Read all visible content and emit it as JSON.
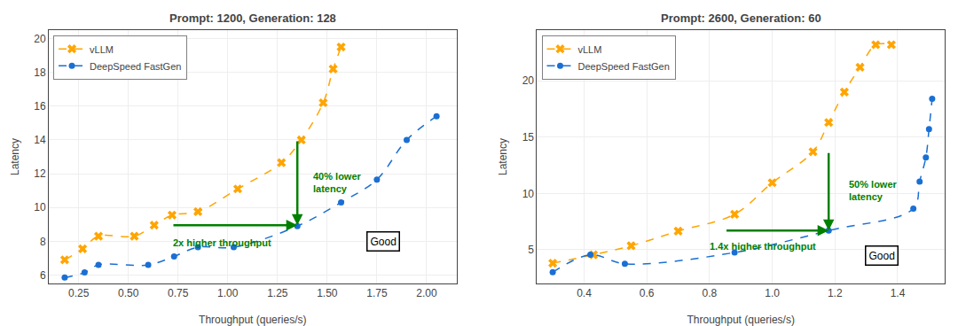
{
  "chart_data": [
    {
      "type": "scatter",
      "title": "Prompt: 1200, Generation: 128",
      "x_label": "Throughput (queries/s)",
      "y_label": "Latency",
      "series": [
        {
          "name": "vLLM",
          "color": "#FFA500",
          "marker": "x",
          "line_style": "dashed",
          "x": [
            0.18,
            0.27,
            0.35,
            0.53,
            0.63,
            0.72,
            0.85,
            1.05,
            1.27,
            1.37,
            1.48,
            1.53,
            1.57
          ],
          "values": [
            6.9,
            7.55,
            8.3,
            8.3,
            8.95,
            9.55,
            9.75,
            11.1,
            12.65,
            14.0,
            16.2,
            18.2,
            19.5
          ]
        },
        {
          "name": "DeepSpeed FastGen",
          "color": "#1a6fd4",
          "marker": "circle",
          "line_style": "dashed",
          "x": [
            0.18,
            0.28,
            0.35,
            0.6,
            0.73,
            0.85,
            1.03,
            1.35,
            1.57,
            1.75,
            1.9,
            2.05
          ],
          "values": [
            5.85,
            6.15,
            6.6,
            6.6,
            7.1,
            7.65,
            7.65,
            8.9,
            10.3,
            11.65,
            14.0,
            15.4
          ]
        }
      ],
      "xlim": [
        0.1,
        2.15
      ],
      "ylim": [
        5.5,
        20.5
      ],
      "xticks": [
        0.25,
        {
          "value": 0.5,
          "label": "0.50"
        },
        0.75,
        {
          "value": 1.0,
          "label": "1.00"
        },
        1.25,
        {
          "value": 1.5,
          "label": "1.50"
        },
        1.75,
        {
          "value": 2.0,
          "label": "2.00"
        }
      ],
      "yticks": [
        6,
        8,
        10,
        12,
        14,
        16,
        18,
        20
      ],
      "grid": true,
      "legend": "upper left",
      "throughput_arrow": {
        "from": [
          0.72,
          8.95
        ],
        "to": [
          1.35,
          8.95
        ],
        "color": "#008000"
      },
      "latency_arrow": {
        "from": [
          1.35,
          14.0
        ],
        "to": [
          1.35,
          8.95
        ],
        "color": "#008000"
      },
      "throughput_label": {
        "text": "2x higher throughput",
        "x": 0.97,
        "y": 8.35,
        "color": "#008000"
      },
      "latency_label": {
        "text": "40% lower\nlatency",
        "x": 1.42,
        "y": 11.5,
        "color": "#008000"
      },
      "good_label": {
        "text": "Good",
        "x": 1.78,
        "y": 8.0
      }
    },
    {
      "type": "scatter",
      "title": "Prompt: 2600, Generation: 60",
      "x_label": "Throughput (queries/s)",
      "y_label": "Latency",
      "series": [
        {
          "name": "vLLM",
          "color": "#FFA500",
          "marker": "x",
          "line_style": "dashed",
          "x": [
            0.3,
            0.43,
            0.55,
            0.7,
            0.88,
            1.0,
            1.13,
            1.18,
            1.23,
            1.28,
            1.33,
            1.38
          ],
          "values": [
            3.8,
            4.55,
            5.35,
            6.65,
            8.15,
            10.95,
            13.7,
            16.3,
            19.0,
            21.2,
            23.2,
            23.2
          ]
        },
        {
          "name": "DeepSpeed FastGen",
          "color": "#1a6fd4",
          "marker": "circle",
          "line_style": "dashed",
          "x": [
            0.3,
            0.42,
            0.53,
            0.88,
            1.18,
            1.45,
            1.47,
            1.49,
            1.5,
            1.51
          ],
          "values": [
            3.0,
            4.55,
            3.75,
            4.75,
            6.7,
            8.65,
            11.05,
            13.2,
            15.7,
            18.4
          ]
        }
      ],
      "xlim": [
        0.25,
        1.55
      ],
      "ylim": [
        2.0,
        24.5
      ],
      "xticks": [
        0.4,
        0.6,
        0.8,
        {
          "value": 1.0,
          "label": "1.0"
        },
        1.2,
        1.4
      ],
      "yticks": [
        5,
        10,
        15,
        20
      ],
      "grid": true,
      "legend": "upper left",
      "throughput_arrow": {
        "from": [
          0.85,
          6.7
        ],
        "to": [
          1.18,
          6.7
        ],
        "color": "#008000"
      },
      "latency_arrow": {
        "from": [
          1.18,
          13.7
        ],
        "to": [
          1.18,
          6.7
        ],
        "color": "#008000"
      },
      "throughput_label": {
        "text": "1.4x higher throughput",
        "x": 0.97,
        "y": 5.9,
        "color": "#008000"
      },
      "latency_label": {
        "text": "50% lower\nlatency",
        "x": 1.24,
        "y": 10.3,
        "color": "#008000"
      },
      "good_label": {
        "text": "Good",
        "x": 1.35,
        "y": 4.5
      }
    }
  ]
}
